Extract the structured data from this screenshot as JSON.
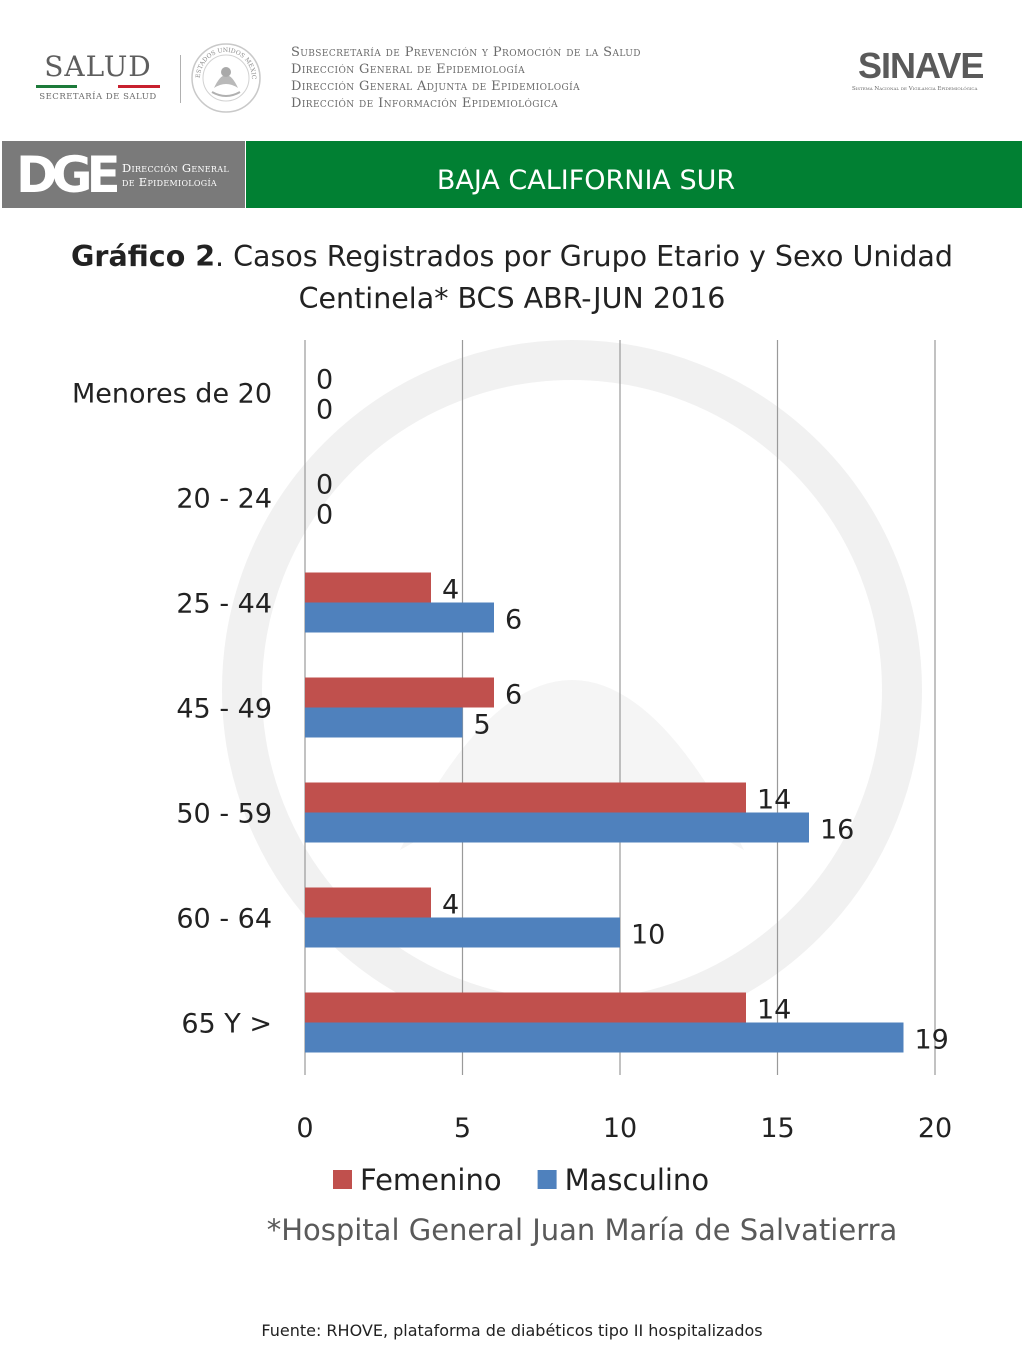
{
  "header": {
    "salud_logo": {
      "word": "SALUD",
      "subtitle": "SECRETARÍA DE SALUD"
    },
    "seal_text": "ESTADOS UNIDOS MEXICANOS",
    "subsecretaria_lines": [
      "Subsecretaría de Prevención y Promoción de la Salud",
      "Dirección General de Epidemiología",
      "Dirección General Adjunta de Epidemiología",
      "Dirección de Información Epidemiológica"
    ],
    "sinave_logo": {
      "word": "SINAVE",
      "subtitle": "Sistema Nacional de Vigilancia Epidemiológica"
    }
  },
  "banner": {
    "dge_letters": "DGE",
    "dge_lines": [
      "Dirección General",
      "de Epidemiología"
    ],
    "state": "BAJA CALIFORNIA SUR",
    "colors": {
      "dge_panel": "#7a7a7a",
      "state_bar": "#018033"
    }
  },
  "title": {
    "bold": "Gráfico 2",
    "rest": ". Casos Registrados por Grupo Etario y Sexo Unidad Centinela* BCS ABR-JUN 2016"
  },
  "chart_data": {
    "type": "bar",
    "orientation": "horizontal",
    "categories": [
      "Menores de 20",
      "20 - 24",
      "25 - 44",
      "45 - 49",
      "50 - 59",
      "60 - 64",
      "65 Y >"
    ],
    "series": [
      {
        "name": "Femenino",
        "color": "#c0504d",
        "values": [
          0,
          0,
          4,
          6,
          14,
          4,
          14
        ]
      },
      {
        "name": "Masculino",
        "color": "#4f81bd",
        "values": [
          0,
          0,
          6,
          5,
          16,
          10,
          19
        ]
      }
    ],
    "xlim": [
      0,
      20
    ],
    "xticks": [
      0,
      5,
      10,
      15,
      20
    ],
    "grid": true,
    "legend_position": "bottom",
    "data_labels": true
  },
  "footnote": "*Hospital General Juan María de Salvatierra",
  "source": "Fuente: RHOVE, plataforma de diabéticos tipo II hospitalizados"
}
